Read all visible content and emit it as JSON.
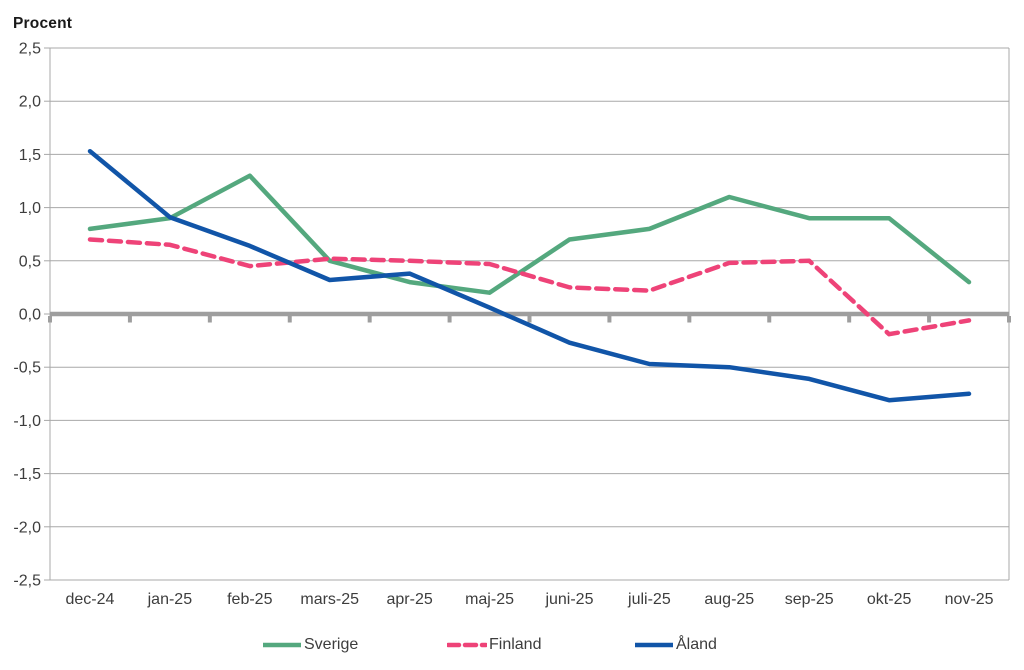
{
  "title": "Procent",
  "chart_data": {
    "type": "line",
    "title": "Procent",
    "x": [
      "dec-24",
      "jan-25",
      "feb-25",
      "mars-25",
      "apr-25",
      "maj-25",
      "juni-25",
      "juli-25",
      "aug-25",
      "sep-25",
      "okt-25",
      "nov-25"
    ],
    "series": [
      {
        "name": "Sverige",
        "color": "#54a87e",
        "line_style": "solid",
        "values": [
          0.8,
          0.9,
          1.3,
          0.5,
          0.3,
          0.2,
          0.7,
          0.8,
          1.1,
          0.9,
          0.9,
          0.3
        ]
      },
      {
        "name": "Finland",
        "color": "#ee4378",
        "line_style": "dashed",
        "values": [
          0.7,
          0.65,
          0.45,
          0.52,
          0.5,
          0.47,
          0.25,
          0.22,
          0.48,
          0.5,
          -0.19,
          -0.06
        ]
      },
      {
        "name": "Åland",
        "color": "#1155a8",
        "line_style": "solid",
        "values": [
          1.53,
          0.91,
          0.64,
          0.32,
          0.38,
          0.06,
          -0.27,
          -0.47,
          -0.5,
          -0.61,
          -0.81,
          -0.75
        ]
      }
    ],
    "ylabel": "Procent",
    "xlabel": "",
    "ylim": [
      -2.5,
      2.5
    ],
    "ytick_step": 0.5,
    "ytick_labels": [
      "2,5",
      "2,0",
      "1,5",
      "1,0",
      "0,5",
      "0,0",
      "-0,5",
      "-1,0",
      "-1,5",
      "-2,0",
      "-2,5"
    ],
    "grid": true,
    "zero_line": true,
    "legend_position": "bottom"
  },
  "colors": {
    "grid": "#a8a8a8",
    "zero_line": "#9e9e9e",
    "axis": "#a8a8a8",
    "tick": "#9e9e9e",
    "axis_text": "#3d3d3d",
    "title_text": "#1a1a1a",
    "background": "#ffffff"
  },
  "legend": {
    "items": [
      {
        "label": "Sverige"
      },
      {
        "label": "Finland"
      },
      {
        "label": "Åland"
      }
    ]
  }
}
